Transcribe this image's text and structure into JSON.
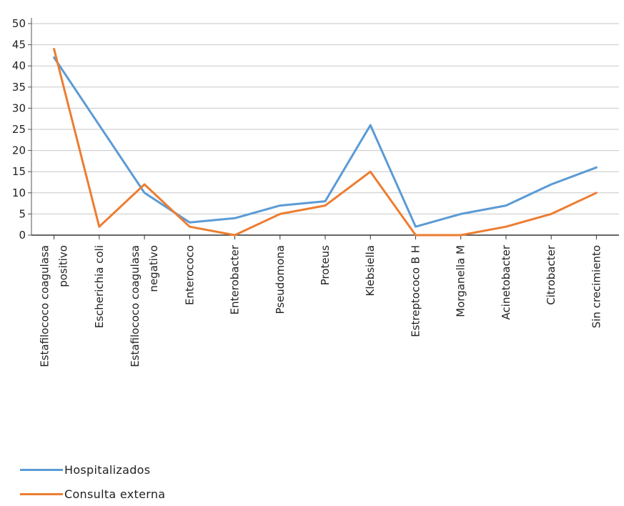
{
  "chart_data": {
    "type": "line",
    "title": "",
    "xlabel": "",
    "ylabel": "",
    "ylim": [
      0,
      50
    ],
    "yticks": [
      0,
      5,
      10,
      15,
      20,
      25,
      30,
      35,
      40,
      45,
      50
    ],
    "grid": true,
    "legend_position": "bottom-left",
    "categories": [
      [
        "Estafilococo coagulasa",
        "positivo"
      ],
      [
        "Escherichia coli"
      ],
      [
        "Estafilococo coagulasa",
        "negativo"
      ],
      [
        "Enterococo"
      ],
      [
        "Enterobacter"
      ],
      [
        "Pseudomona"
      ],
      [
        "Proteus"
      ],
      [
        "Klebsiella"
      ],
      [
        "Estreptococo B H"
      ],
      [
        "Morganella M"
      ],
      [
        "Acinetobacter"
      ],
      [
        "Citrobacter"
      ],
      [
        "Sin crecimiento"
      ]
    ],
    "series": [
      {
        "name": "Hospitalizados",
        "color": "#5b9bd5",
        "values": [
          42,
          26,
          10,
          3,
          4,
          7,
          8,
          26,
          2,
          5,
          7,
          12,
          16
        ]
      },
      {
        "name": "Consulta externa",
        "color": "#ed7d31",
        "values": [
          44,
          2,
          12,
          2,
          0,
          5,
          7,
          15,
          0,
          0,
          2,
          5,
          10
        ]
      }
    ]
  }
}
